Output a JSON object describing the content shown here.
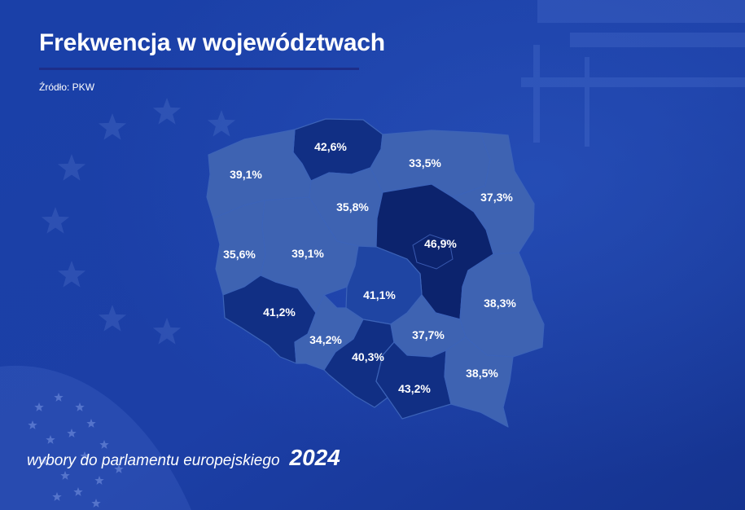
{
  "title": "Frekwencja w województwach",
  "source": "Źródło: PKW",
  "footer": {
    "text": "wybory do parlamentu europejskiego",
    "year": "2024"
  },
  "colors": {
    "background": "#1a3ea3",
    "level_light": "#3e63b2",
    "level_medium": "#1f45a3",
    "level_dark": "#112f84",
    "level_darkest": "#0c236d"
  },
  "regions": [
    {
      "name": "pomorskie",
      "turnout": "42,6%",
      "level": "dark"
    },
    {
      "name": "zachodniopomorskie",
      "turnout": "39,1%",
      "level": "light"
    },
    {
      "name": "warmińsko-mazurskie",
      "turnout": "33,5%",
      "level": "light"
    },
    {
      "name": "podlaskie",
      "turnout": "37,3%",
      "level": "light"
    },
    {
      "name": "kujawsko-pomorskie",
      "turnout": "35,8%",
      "level": "light"
    },
    {
      "name": "mazowieckie",
      "turnout": "46,9%",
      "level": "darkest"
    },
    {
      "name": "lubuskie",
      "turnout": "35,6%",
      "level": "light"
    },
    {
      "name": "wielkopolskie",
      "turnout": "39,1%",
      "level": "light"
    },
    {
      "name": "łódzkie",
      "turnout": "41,1%",
      "level": "medium"
    },
    {
      "name": "lubelskie",
      "turnout": "38,3%",
      "level": "light"
    },
    {
      "name": "dolnośląskie",
      "turnout": "41,2%",
      "level": "dark"
    },
    {
      "name": "opolskie",
      "turnout": "34,2%",
      "level": "light"
    },
    {
      "name": "śląskie",
      "turnout": "40,3%",
      "level": "dark"
    },
    {
      "name": "świętokrzyskie",
      "turnout": "37,7%",
      "level": "light"
    },
    {
      "name": "małopolskie",
      "turnout": "43,2%",
      "level": "dark"
    },
    {
      "name": "podkarpackie",
      "turnout": "38,5%",
      "level": "light"
    }
  ]
}
